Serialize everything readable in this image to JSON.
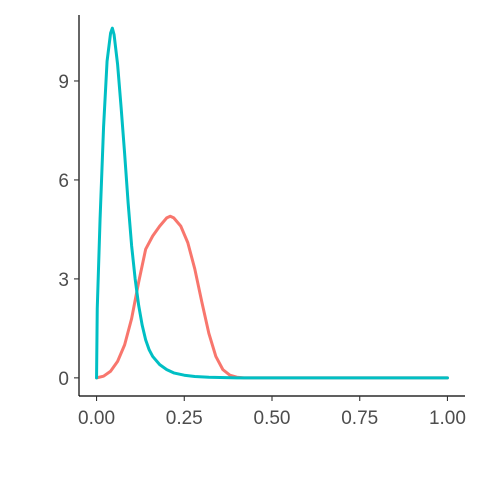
{
  "chart_data": {
    "type": "line",
    "title": "",
    "xlabel": "",
    "ylabel": "",
    "xlim": [
      -0.05,
      1.05
    ],
    "ylim": [
      -0.55,
      11.0
    ],
    "xticks": [
      0.0,
      0.25,
      0.5,
      0.75,
      1.0
    ],
    "xtick_labels": [
      "0.00",
      "0.25",
      "0.50",
      "0.75",
      "1.00"
    ],
    "yticks": [
      0,
      3,
      6,
      9
    ],
    "ytick_labels": [
      "0",
      "3",
      "6",
      "9"
    ],
    "grid": false,
    "legend": "none",
    "series": [
      {
        "color": "#F8766D",
        "x": [
          0.0,
          0.02,
          0.04,
          0.06,
          0.08,
          0.1,
          0.12,
          0.14,
          0.16,
          0.18,
          0.2,
          0.21,
          0.22,
          0.24,
          0.26,
          0.28,
          0.3,
          0.32,
          0.34,
          0.36,
          0.38,
          0.4,
          0.42,
          0.44,
          0.5,
          0.75,
          1.0
        ],
        "y": [
          0.0,
          0.05,
          0.2,
          0.5,
          1.0,
          1.8,
          2.9,
          3.9,
          4.3,
          4.6,
          4.85,
          4.9,
          4.85,
          4.6,
          4.1,
          3.3,
          2.3,
          1.35,
          0.65,
          0.25,
          0.08,
          0.02,
          0.0,
          0.0,
          0.0,
          0.0,
          0.0
        ]
      },
      {
        "color": "#00BFC4",
        "x": [
          0.0,
          0.002,
          0.01,
          0.02,
          0.03,
          0.04,
          0.045,
          0.05,
          0.06,
          0.07,
          0.08,
          0.09,
          0.1,
          0.11,
          0.12,
          0.13,
          0.14,
          0.15,
          0.16,
          0.18,
          0.2,
          0.22,
          0.25,
          0.28,
          0.32,
          0.4,
          0.5,
          0.75,
          1.0
        ],
        "y": [
          0.0,
          2.1,
          4.8,
          7.6,
          9.6,
          10.45,
          10.6,
          10.4,
          9.5,
          8.2,
          6.8,
          5.3,
          4.0,
          3.0,
          2.2,
          1.6,
          1.15,
          0.85,
          0.65,
          0.4,
          0.25,
          0.15,
          0.08,
          0.04,
          0.02,
          0.0,
          0.0,
          0.0,
          0.0
        ]
      }
    ]
  }
}
